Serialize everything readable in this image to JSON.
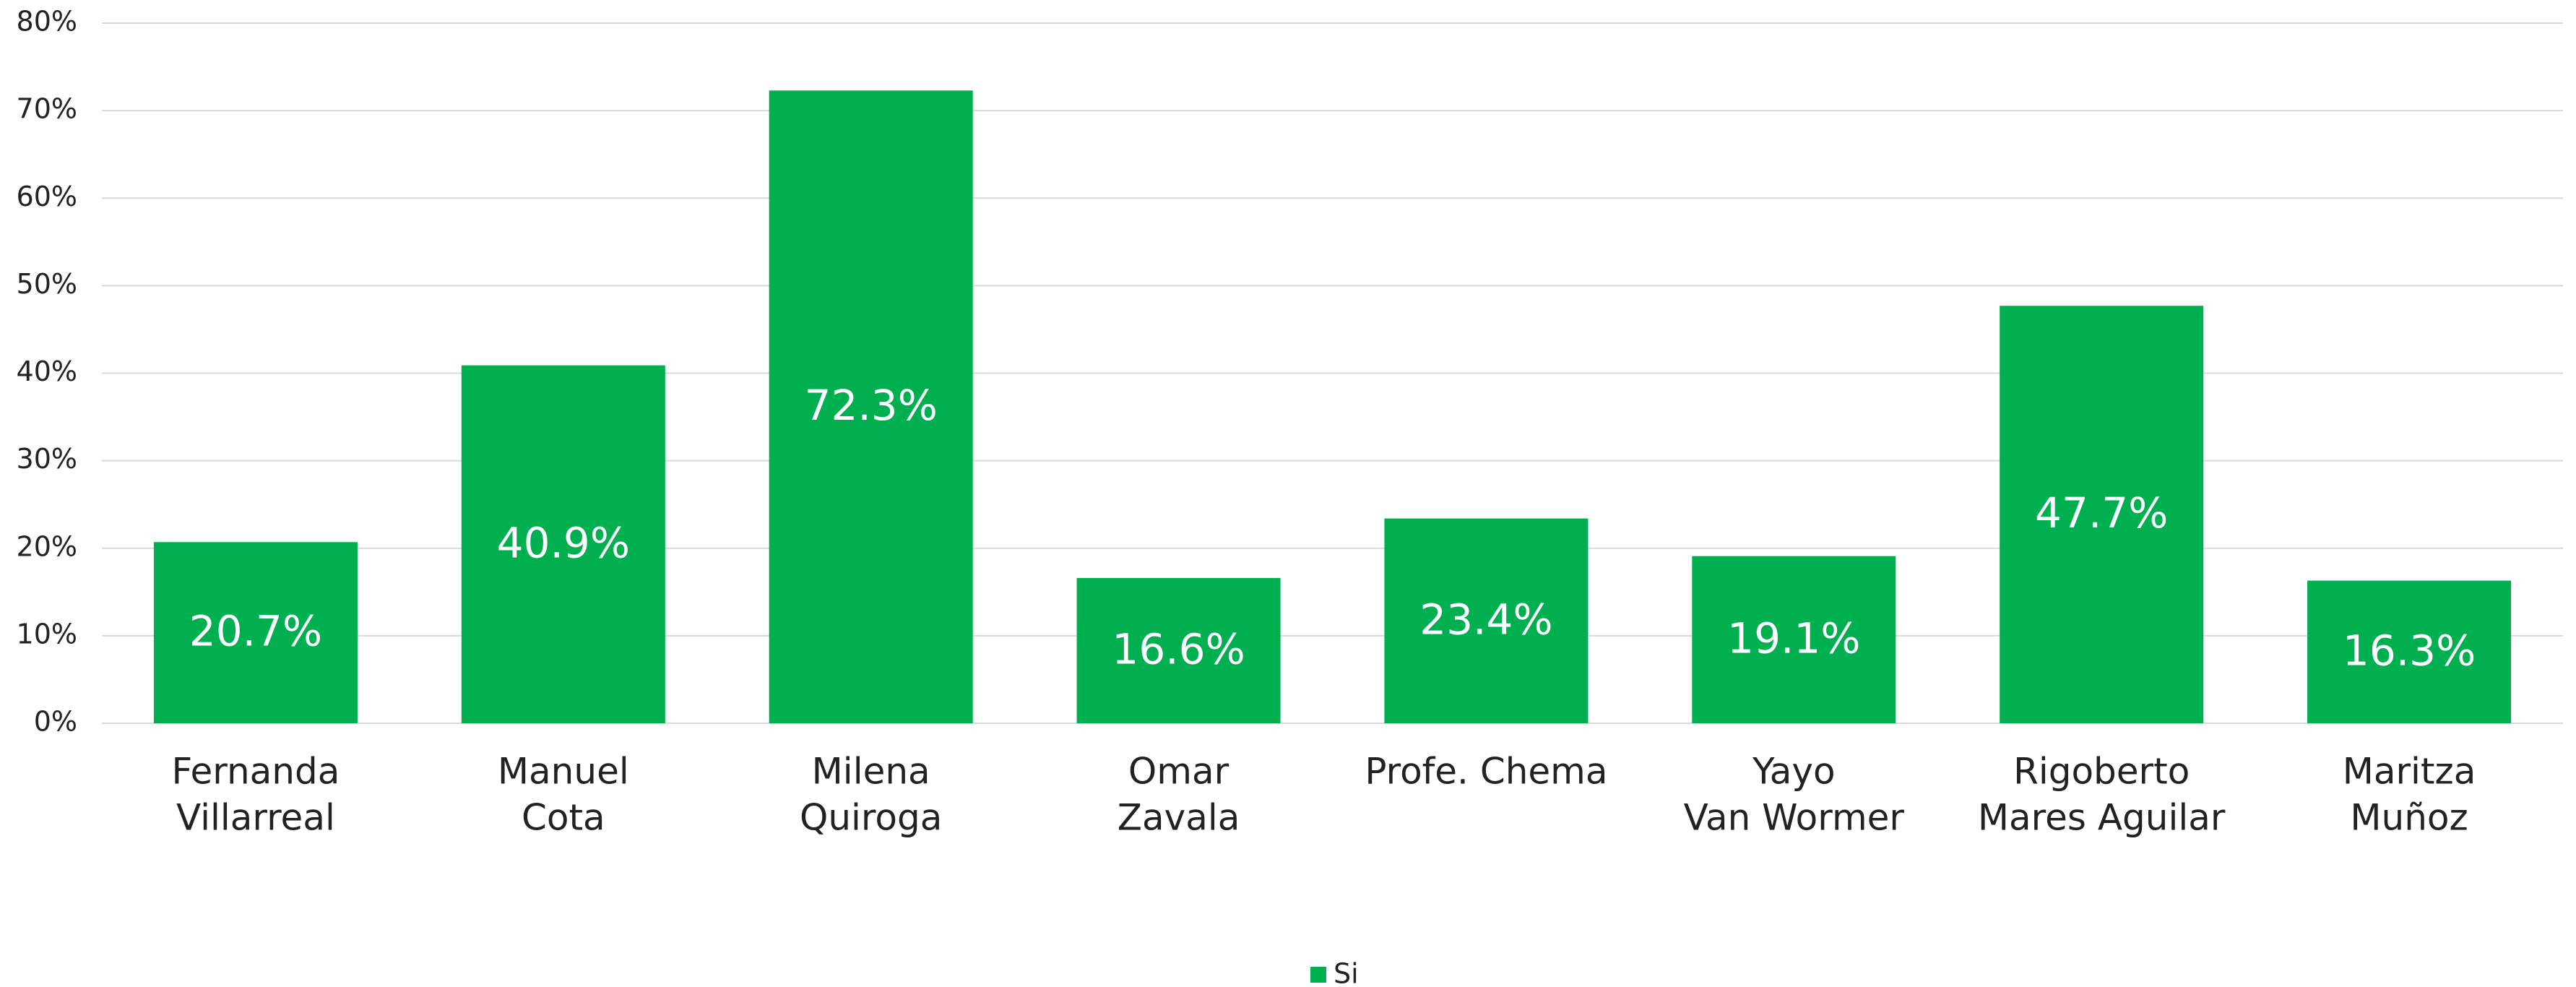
{
  "chart_data": {
    "type": "bar",
    "categories": [
      [
        "Fernanda",
        "Villarreal"
      ],
      [
        "Manuel",
        "Cota"
      ],
      [
        "Milena",
        "Quiroga"
      ],
      [
        "Omar",
        "Zavala"
      ],
      [
        "Profe. Chema"
      ],
      [
        "Yayo",
        "Van Wormer"
      ],
      [
        "Rigoberto",
        "Mares Aguilar"
      ],
      [
        "Maritza",
        "Muñoz"
      ]
    ],
    "series": [
      {
        "name": "Si",
        "color": "#00b050",
        "values": [
          20.7,
          40.9,
          72.3,
          16.6,
          23.4,
          19.1,
          47.7,
          16.3
        ],
        "value_labels": [
          "20.7%",
          "40.9%",
          "72.3%",
          "16.6%",
          "23.4%",
          "19.1%",
          "47.7%",
          "16.3%"
        ]
      }
    ],
    "ylim": [
      0,
      80
    ],
    "yticks": [
      {
        "value": 0,
        "label": "0%"
      },
      {
        "value": 10,
        "label": "10%"
      },
      {
        "value": 20,
        "label": "20%"
      },
      {
        "value": 30,
        "label": "30%"
      },
      {
        "value": 40,
        "label": "40%"
      },
      {
        "value": 50,
        "label": "50%"
      },
      {
        "value": 60,
        "label": "60%"
      },
      {
        "value": 70,
        "label": "70%"
      },
      {
        "value": 80,
        "label": "80%"
      }
    ],
    "grid": true,
    "legend": "bottom"
  }
}
